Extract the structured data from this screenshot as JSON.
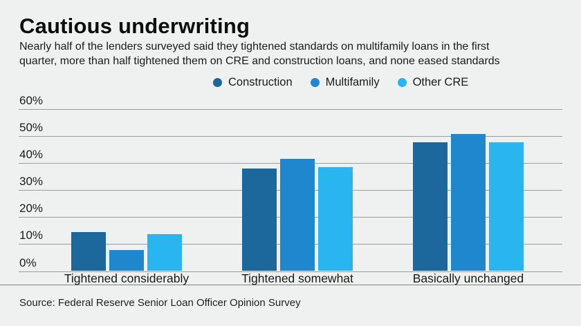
{
  "colors": {
    "background": "#EFF1F0",
    "construction": "#1C679B",
    "multifamily": "#1E87CE",
    "other_cre": "#29B5EF",
    "grid_line": "#9B9D9D",
    "separator": "#7D807F",
    "text_dark": "#1A1A1A"
  },
  "header": {
    "title": "Cautious underwriting",
    "subtitle_lines": [
      "Nearly half of the lenders surveyed said they tightened standards on multifamily loans in the first",
      "quarter, more than half tightened them on CRE and construction loans, and none eased standards"
    ]
  },
  "chart_data": {
    "type": "bar",
    "title": "Cautious underwriting",
    "categories": [
      "Tightened considerably",
      "Tightened somewhat",
      "Basically unchanged"
    ],
    "series": [
      {
        "name": "Construction",
        "color": "#1C679B",
        "values": [
          14.4,
          38.0,
          47.8
        ]
      },
      {
        "name": "Multifamily",
        "color": "#1E87CE",
        "values": [
          7.8,
          41.7,
          50.8
        ]
      },
      {
        "name": "Other CRE",
        "color": "#29B5EF",
        "values": [
          13.7,
          38.5,
          47.8
        ]
      }
    ],
    "ylim": [
      0,
      60
    ],
    "ytick_step": 10,
    "ytick_labels": [
      "0%",
      "10%",
      "20%",
      "30%",
      "40%",
      "50%",
      "60%"
    ],
    "grid": true,
    "legend_position": "top-center"
  },
  "footer": {
    "source": "Source: Federal Reserve Senior Loan Officer Opinion Survey"
  }
}
